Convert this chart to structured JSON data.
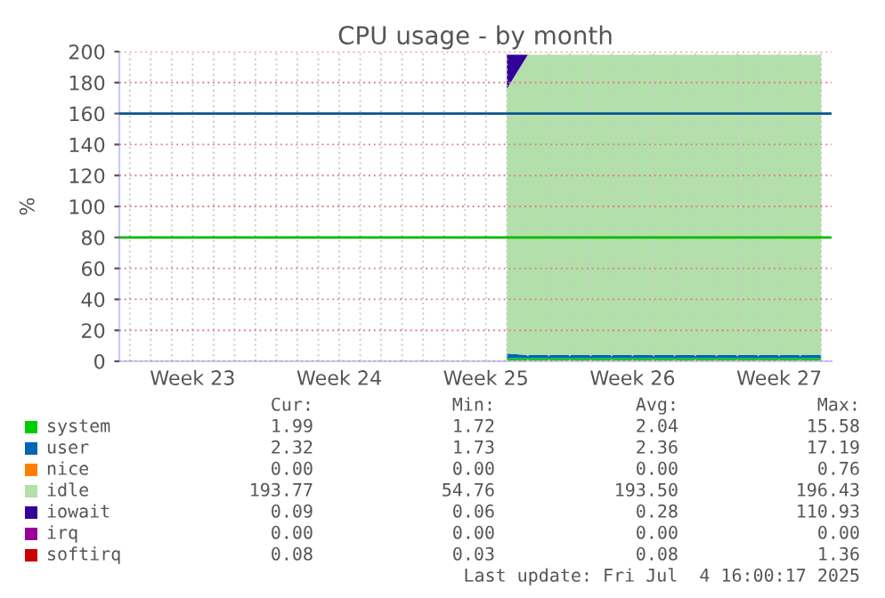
{
  "chart_data": {
    "type": "area",
    "stacked": true,
    "title": "CPU usage - by month",
    "ylabel": "%",
    "categories": [
      null,
      null,
      null,
      "Week 23",
      null,
      null,
      null,
      null,
      null,
      null,
      "Week 24",
      null,
      null,
      null,
      null,
      null,
      null,
      "Week 25",
      null,
      null,
      null,
      null,
      null,
      null,
      "Week 26",
      null,
      null,
      null,
      null,
      null,
      null,
      "Week 27",
      null,
      null
    ],
    "series": [
      {
        "name": "system",
        "color": "#00cc00",
        "values": [
          null,
          null,
          null,
          null,
          null,
          null,
          null,
          null,
          null,
          null,
          null,
          null,
          null,
          null,
          null,
          null,
          null,
          null,
          2,
          2,
          2,
          2,
          2,
          2,
          2,
          2,
          2,
          2,
          2,
          2,
          2,
          2,
          2,
          2
        ]
      },
      {
        "name": "user",
        "color": "#0066b3",
        "values": [
          null,
          null,
          null,
          null,
          null,
          null,
          null,
          null,
          null,
          null,
          null,
          null,
          null,
          null,
          null,
          null,
          null,
          null,
          3,
          2,
          2,
          2,
          2,
          2,
          2,
          2,
          2,
          2,
          2,
          2,
          2,
          2,
          2,
          2
        ]
      },
      {
        "name": "nice",
        "color": "#ff8000",
        "values": [
          null,
          null,
          null,
          null,
          null,
          null,
          null,
          null,
          null,
          null,
          null,
          null,
          null,
          null,
          null,
          null,
          null,
          null,
          null,
          null,
          null,
          null,
          null,
          null,
          null,
          null,
          null,
          null,
          null,
          null,
          null,
          null,
          null,
          null
        ]
      },
      {
        "name": "idle",
        "color": "#b3e0aa",
        "values": [
          null,
          null,
          null,
          null,
          null,
          null,
          null,
          null,
          null,
          null,
          null,
          null,
          null,
          null,
          null,
          null,
          null,
          null,
          171,
          194,
          194,
          194,
          194,
          194,
          194,
          194,
          194,
          194,
          194,
          194,
          194,
          194,
          194,
          194
        ]
      },
      {
        "name": "iowait",
        "color": "#330099",
        "values": [
          null,
          null,
          null,
          null,
          null,
          null,
          null,
          null,
          null,
          null,
          null,
          null,
          null,
          null,
          null,
          null,
          null,
          null,
          22,
          0,
          0,
          0,
          0,
          0,
          0,
          0,
          0,
          0,
          0,
          0,
          0,
          0,
          0,
          0
        ]
      },
      {
        "name": "irq",
        "color": "#990099",
        "values": [
          null,
          null,
          null,
          null,
          null,
          null,
          null,
          null,
          null,
          null,
          null,
          null,
          null,
          null,
          null,
          null,
          null,
          null,
          null,
          null,
          null,
          null,
          null,
          null,
          null,
          null,
          null,
          null,
          null,
          null,
          null,
          null,
          null,
          null
        ]
      },
      {
        "name": "softirq",
        "color": "#cc0000",
        "values": [
          null,
          null,
          null,
          null,
          null,
          null,
          null,
          null,
          null,
          null,
          null,
          null,
          null,
          null,
          null,
          null,
          null,
          null,
          null,
          null,
          null,
          null,
          null,
          null,
          null,
          null,
          null,
          null,
          null,
          null,
          null,
          null,
          null,
          null
        ]
      }
    ],
    "ylim": [
      0,
      200
    ],
    "yticks": [
      0,
      20,
      40,
      60,
      80,
      100,
      120,
      140,
      160,
      180,
      200
    ],
    "ref_lines": [
      {
        "axis": "y",
        "value": 160,
        "color": "#0b5394"
      },
      {
        "axis": "y",
        "value": 80,
        "color": "#00bb00"
      }
    ],
    "grid": true,
    "legend": "bottom",
    "annotations": [
      "Cur:",
      "Min:",
      "Avg:",
      "Max:",
      "1.99",
      "1.72",
      "2.04",
      "15.58",
      "2.32",
      "1.73",
      "2.36",
      "17.19",
      "0.00",
      "0.00",
      "0.00",
      "0.76",
      "193.77",
      "54.76",
      "193.50",
      "196.43",
      "0.09",
      "0.06",
      "0.28",
      "110.93",
      "0.00",
      "0.00",
      "0.00",
      "0.00",
      "0.08",
      "0.03",
      "0.08",
      "1.36",
      "Last update: Fri Jul  4 16:00:17 2025"
    ]
  }
}
